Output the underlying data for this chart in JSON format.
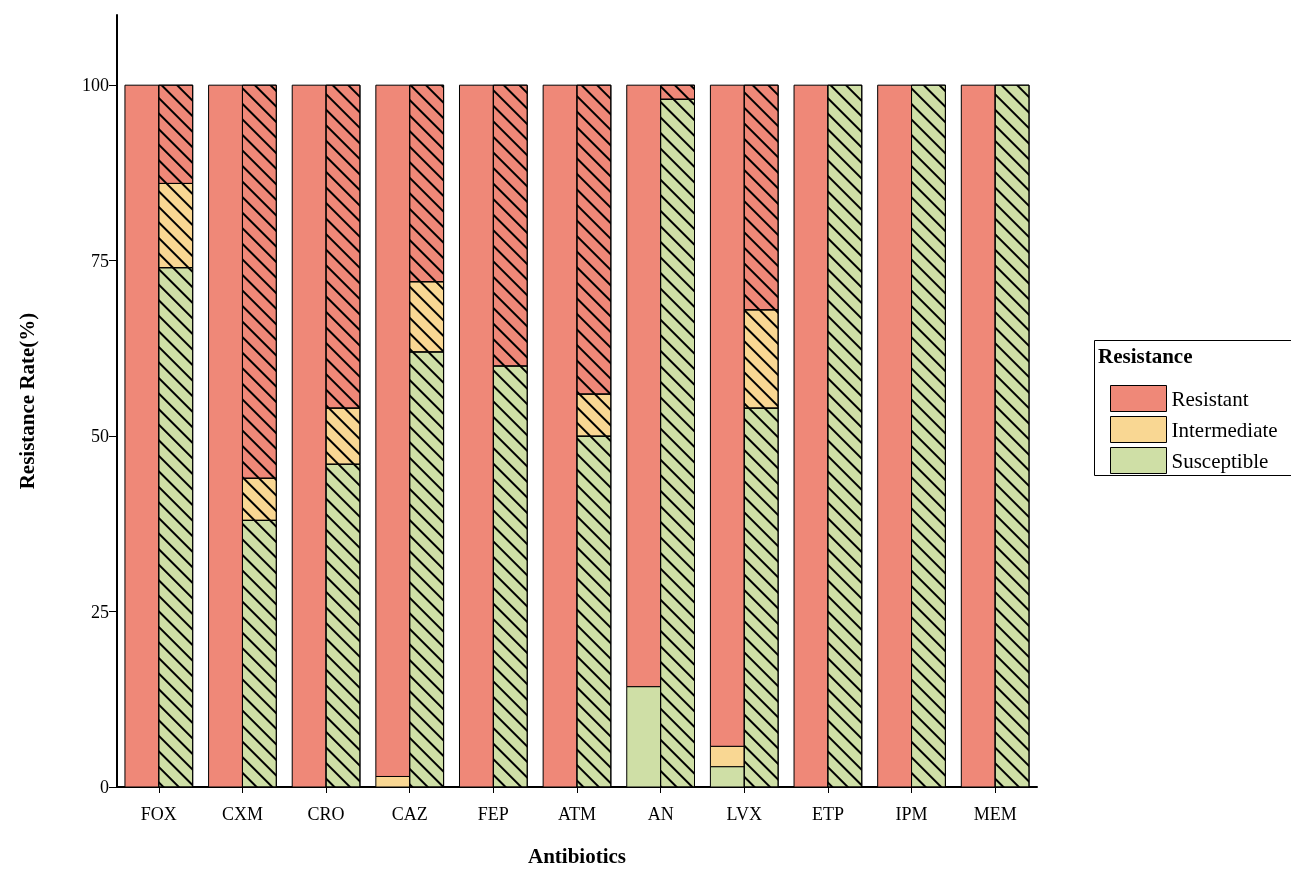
{
  "chart_data": {
    "type": "bar",
    "xlabel": "Antibiotics",
    "ylabel": "Resistance Rate(%)",
    "legend_title": "Resistance",
    "legend": "right",
    "categories": [
      "FOX",
      "CXM",
      "CRO",
      "CAZ",
      "FEP",
      "ATM",
      "AN",
      "LVX",
      "ETP",
      "IPM",
      "MEM"
    ],
    "ylim": [
      0,
      110
    ],
    "yticks": [
      0,
      25,
      50,
      75,
      100
    ],
    "grid": false,
    "series": [
      {
        "name": "Susceptible",
        "color": "#cfdfa6",
        "values": [
          null,
          null,
          null,
          null,
          null,
          null,
          14.3,
          2.9,
          null,
          null,
          null
        ],
        "base": [
          null,
          null,
          null,
          null,
          null,
          null,
          0,
          0,
          null,
          null,
          null
        ]
      },
      {
        "name": "Intermediate",
        "color": "#f9d793",
        "values": [
          null,
          null,
          null,
          1.5,
          null,
          null,
          null,
          2.9,
          null,
          null,
          null
        ],
        "base": [
          null,
          null,
          null,
          0,
          null,
          null,
          null,
          2.9,
          null,
          null,
          null
        ]
      },
      {
        "name": "Resistant",
        "color": "#ef8878",
        "values": [
          100,
          100,
          100,
          98.5,
          100,
          100,
          85.7,
          94.2,
          100,
          100,
          100
        ],
        "base": [
          0,
          0,
          0,
          1.5,
          0,
          0,
          14.3,
          5.8,
          0,
          0,
          0
        ]
      },
      {
        "color": "#cfdfa6",
        "values": [
          74,
          38,
          46,
          62,
          60,
          50,
          98,
          54,
          100,
          100,
          100
        ],
        "base": [
          0,
          0,
          0,
          0,
          0,
          0,
          0,
          0,
          0,
          0,
          0
        ]
      },
      {
        "color": "#f9d793",
        "values": [
          12,
          6,
          8,
          10,
          null,
          6,
          null,
          14,
          null,
          null,
          null
        ],
        "base": [
          74,
          38,
          46,
          62,
          null,
          50,
          null,
          54,
          null,
          null,
          null
        ]
      },
      {
        "color": "#ef8878",
        "values": [
          14,
          56,
          46,
          28,
          40,
          44,
          2,
          32,
          null,
          null,
          null
        ],
        "base": [
          86,
          44,
          54,
          72,
          60,
          56,
          98,
          68,
          null,
          null,
          null
        ]
      }
    ]
  }
}
